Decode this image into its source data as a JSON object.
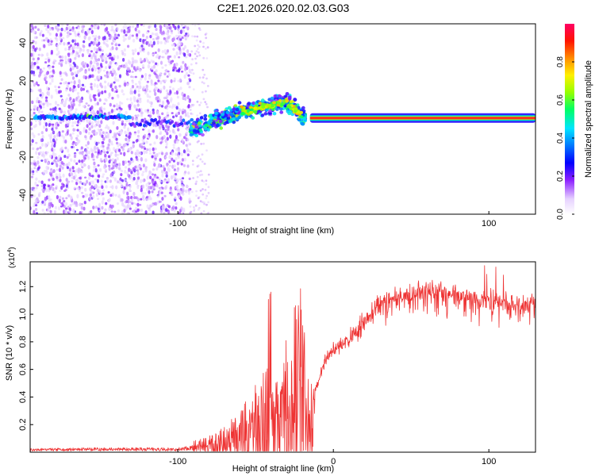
{
  "title": "C2E1.2026.020.02.03.G03",
  "chart_data": [
    {
      "type": "heatmap",
      "panel": "spectrogram",
      "xlabel": "Height of straight line (km)",
      "ylabel": "Frequency (Hz)",
      "xlim": [
        -195,
        130
      ],
      "ylim": [
        -50,
        50
      ],
      "xticks": [
        -100,
        100
      ],
      "xtick_labels": [
        "-100",
        "100"
      ],
      "yticks": [
        -40,
        -20,
        0,
        20,
        40
      ],
      "ytick_labels": [
        "-40",
        "-20",
        "0",
        "20",
        "40"
      ],
      "colorbar": {
        "label": "Normalized spectral amplitude",
        "range": [
          0,
          1
        ],
        "ticks": [
          0.0,
          0.2,
          0.4,
          0.6,
          0.8
        ],
        "tick_labels": [
          "0.0",
          "0.2",
          "0.4",
          "0.6",
          "0.8"
        ]
      },
      "features": {
        "noise_region_x": [
          -195,
          -92
        ],
        "sparse_noise_x": [
          -92,
          -80
        ],
        "carrier_line_x": [
          -15,
          130
        ],
        "carrier_freq": 0.5,
        "rising_track": {
          "x": [
            -92,
            -60,
            -40,
            -30,
            -22,
            -18
          ],
          "f": [
            -6,
            4,
            7,
            9,
            3,
            0
          ]
        }
      }
    },
    {
      "type": "line",
      "panel": "snr",
      "xlabel": "Height of straight line (km)",
      "ylabel": "SNR (10 * v/v)",
      "scale_label": "(x10",
      "scale_exp": "4",
      "xlim": [
        -195,
        130
      ],
      "ylim": [
        0,
        13800
      ],
      "xticks": [
        -100,
        0,
        100
      ],
      "xtick_labels": [
        "-100",
        "0",
        "100"
      ],
      "yticks": [
        2000,
        4000,
        6000,
        8000,
        10000,
        12000
      ],
      "ytick_labels": [
        "0.2",
        "0.4",
        "0.6",
        "0.8",
        "1.0",
        "1.2"
      ],
      "color": "#ee3333",
      "series": [
        {
          "name": "SNR envelope",
          "x": [
            -195,
            -150,
            -100,
            -85,
            -70,
            -60,
            -50,
            -42,
            -35,
            -30,
            -25,
            -20,
            -15,
            -10,
            -5,
            0,
            10,
            20,
            25,
            30,
            40,
            50,
            60,
            70,
            80,
            90,
            100,
            110,
            120,
            130
          ],
          "y": [
            300,
            350,
            350,
            700,
            1300,
            2200,
            3500,
            4500,
            3500,
            6000,
            4000,
            8500,
            3500,
            5000,
            6800,
            7300,
            8100,
            9400,
            10300,
            10900,
            11200,
            11400,
            11600,
            11700,
            11500,
            11200,
            10900,
            10800,
            10700,
            10700
          ]
        }
      ]
    }
  ]
}
